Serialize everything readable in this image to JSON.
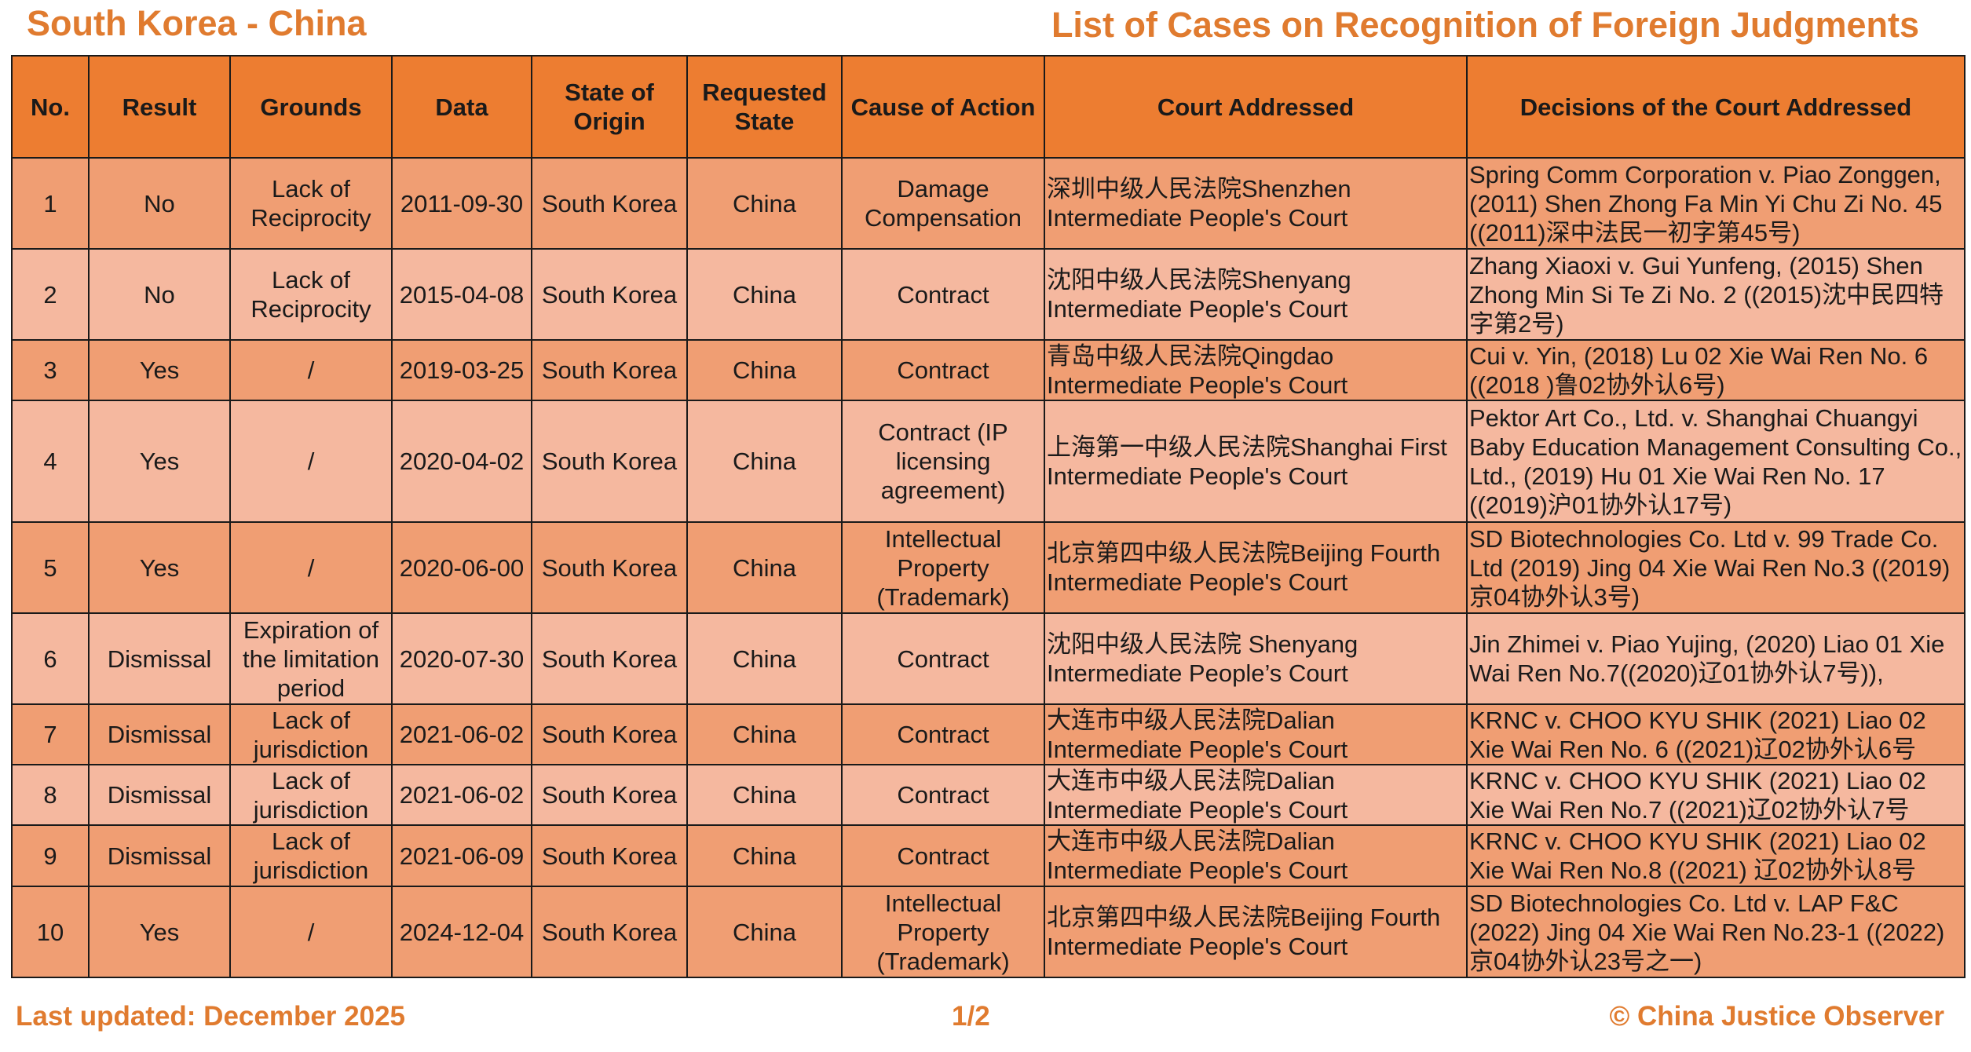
{
  "header": {
    "left_title": "South Korea - China",
    "right_title": "List of Cases on Recognition of Foreign Judgments"
  },
  "colors": {
    "accent": "#ed7d31",
    "title_text": "#e07b2f",
    "row_dark": "#f09e73",
    "row_light": "#f5b89f"
  },
  "table": {
    "headers": [
      "No.",
      "Result",
      "Grounds",
      "Data",
      "State of Origin",
      "Requested State",
      "Cause of Action",
      "Court Addressed",
      "Decisions of the Court Addressed"
    ],
    "rows": [
      {
        "no": "1",
        "result": "No",
        "grounds": "Lack of Reciprocity",
        "date": "2011-09-30",
        "origin": "South Korea",
        "requested": "China",
        "cause": "Damage Compensation",
        "court": "深圳中级人民法院Shenzhen Intermediate People's Court",
        "decision": "Spring Comm Corporation v. Piao Zonggen, (2011) Shen Zhong Fa Min Yi Chu Zi No. 45 ((2011)深中法民一初字第45号)"
      },
      {
        "no": "2",
        "result": "No",
        "grounds": "Lack of Reciprocity",
        "date": "2015-04-08",
        "origin": "South Korea",
        "requested": "China",
        "cause": "Contract",
        "court": "沈阳中级人民法院Shenyang Intermediate People's Court",
        "decision": "Zhang Xiaoxi v. Gui Yunfeng, (2015) Shen Zhong Min Si Te Zi No. 2 ((2015)沈中民四特字第2号)"
      },
      {
        "no": "3",
        "result": "Yes",
        "grounds": "/",
        "date": "2019-03-25",
        "origin": "South Korea",
        "requested": "China",
        "cause": "Contract",
        "court": "青岛中级人民法院Qingdao Intermediate People's Court",
        "decision": "Cui v. Yin, (2018) Lu 02 Xie Wai Ren No. 6 ((2018 )鲁02协外认6号)"
      },
      {
        "no": "4",
        "result": "Yes",
        "grounds": "/",
        "date": "2020-04-02",
        "origin": "South Korea",
        "requested": "China",
        "cause": "Contract (IP licensing agreement)",
        "court": "上海第一中级人民法院Shanghai First Intermediate People's Court",
        "decision": "Pektor Art Co., Ltd. v. Shanghai Chuangyi Baby Education Management Consulting Co., Ltd., (2019) Hu 01 Xie Wai Ren No. 17 ((2019)沪01协外认17号)"
      },
      {
        "no": "5",
        "result": "Yes",
        "grounds": "/",
        "date": "2020-06-00",
        "origin": "South Korea",
        "requested": "China",
        "cause": "Intellectual Property (Trademark)",
        "court": "北京第四中级人民法院Beijing Fourth Intermediate People's Court",
        "decision": "SD Biotechnologies Co. Ltd v. 99 Trade Co. Ltd (2019) Jing 04 Xie Wai Ren No.3 ((2019)京04协外认3号)"
      },
      {
        "no": "6",
        "result": "Dismissal",
        "grounds": "Expiration of the limitation period",
        "date": "2020-07-30",
        "origin": "South Korea",
        "requested": "China",
        "cause": "Contract",
        "court": "沈阳中级人民法院 Shenyang Intermediate People’s Court",
        "decision": "Jin Zhimei v. Piao Yujing, (2020) Liao 01 Xie Wai Ren No.7((2020)辽01协外认7号)),"
      },
      {
        "no": "7",
        "result": "Dismissal",
        "grounds": "Lack of jurisdiction",
        "date": "2021-06-02",
        "origin": "South Korea",
        "requested": "China",
        "cause": "Contract",
        "court": "大连市中级人民法院Dalian Intermediate People's Court",
        "decision": "KRNC v. CHOO KYU SHIK (2021) Liao 02 Xie Wai Ren No. 6 ((2021)辽02协外认6号"
      },
      {
        "no": "8",
        "result": "Dismissal",
        "grounds": "Lack of jurisdiction",
        "date": "2021-06-02",
        "origin": "South Korea",
        "requested": "China",
        "cause": "Contract",
        "court": "大连市中级人民法院Dalian Intermediate People's Court",
        "decision": "KRNC v. CHOO KYU SHIK (2021) Liao 02 Xie Wai Ren No.7 ((2021)辽02协外认7号"
      },
      {
        "no": "9",
        "result": "Dismissal",
        "grounds": "Lack of jurisdiction",
        "date": "2021-06-09",
        "origin": "South Korea",
        "requested": "China",
        "cause": "Contract",
        "court": "大连市中级人民法院Dalian Intermediate People's Court",
        "decision": "KRNC v. CHOO KYU SHIK (2021) Liao 02 Xie Wai Ren No.8 ((2021) 辽02协外认8号"
      },
      {
        "no": "10",
        "result": "Yes",
        "grounds": "/",
        "date": "2024-12-04",
        "origin": "South Korea",
        "requested": "China",
        "cause": "Intellectual Property (Trademark)",
        "court": "北京第四中级人民法院Beijing Fourth Intermediate People's Court",
        "decision": "SD Biotechnologies Co. Ltd v. LAP F&C (2022) Jing 04 Xie Wai Ren No.23-1 ((2022)京04协外认23号之一)"
      }
    ]
  },
  "footer": {
    "last_updated": "Last updated: December 2025",
    "page": "1/2",
    "copyright": "© China Justice Observer"
  }
}
